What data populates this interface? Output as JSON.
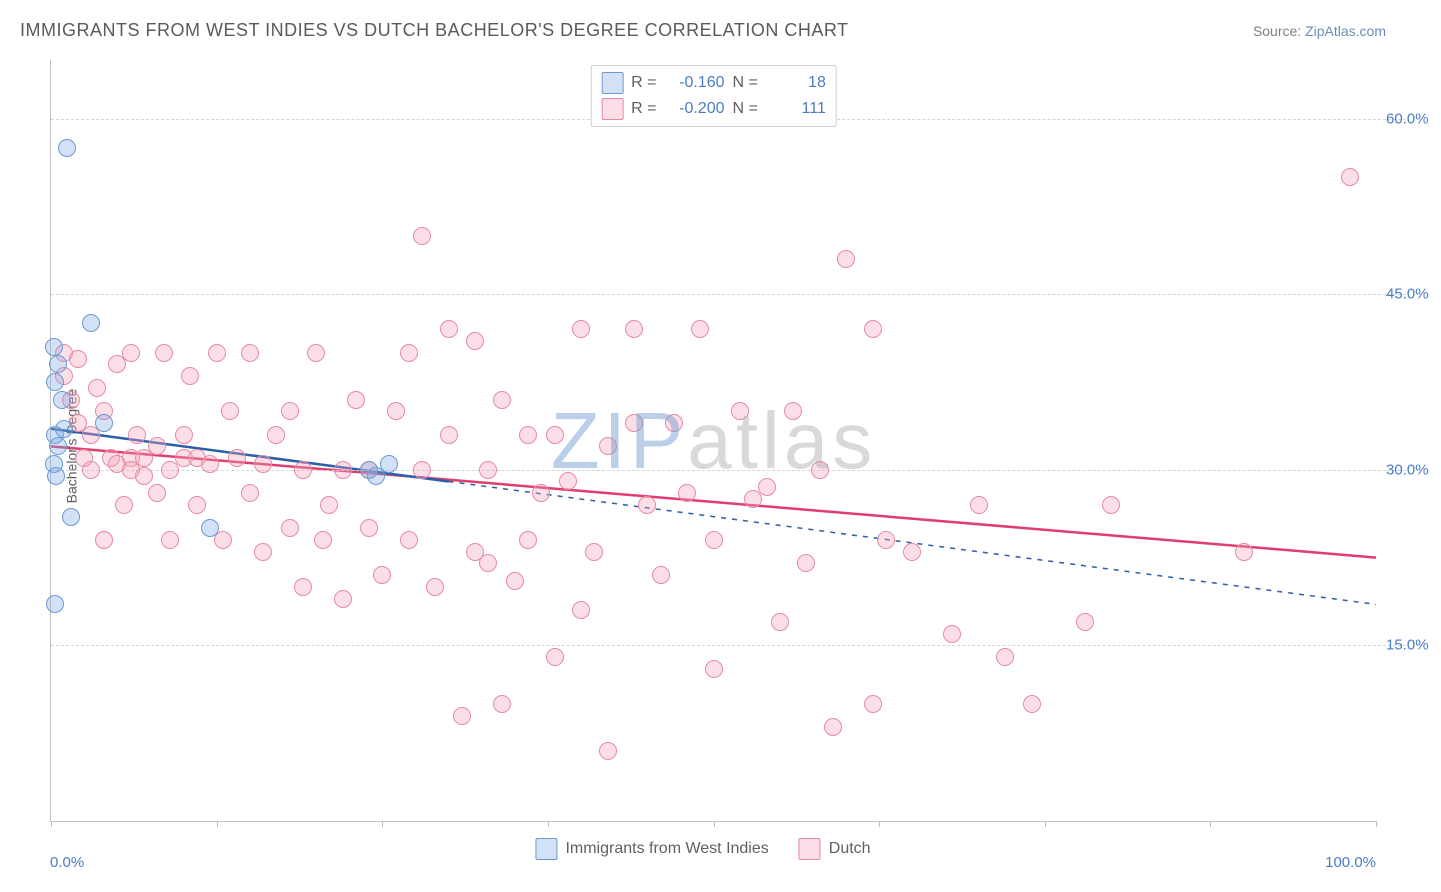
{
  "header": {
    "title": "IMMIGRANTS FROM WEST INDIES VS DUTCH BACHELOR'S DEGREE CORRELATION CHART",
    "source_prefix": "Source: ",
    "source_link": "ZipAtlas.com"
  },
  "watermark": {
    "part1": "ZIP",
    "part2": "atlas"
  },
  "chart": {
    "type": "scatter",
    "background_color": "#ffffff",
    "grid_color": "#d5d5d5",
    "axis_color": "#c0c0c0",
    "ylabel": "Bachelor's Degree",
    "ylabel_fontsize": 14,
    "ylabel_color": "#606060",
    "xlim": [
      0,
      100
    ],
    "ylim": [
      0,
      65
    ],
    "xtick_positions": [
      0,
      12.5,
      25,
      37.5,
      50,
      62.5,
      75,
      87.5,
      100
    ],
    "xtick_labels_shown": {
      "0": "0.0%",
      "100": "100.0%"
    },
    "ytick_positions": [
      15,
      30,
      45,
      60
    ],
    "ytick_labels": [
      "15.0%",
      "30.0%",
      "45.0%",
      "60.0%"
    ],
    "tick_label_color": "#4a7bc8",
    "tick_label_fontsize": 15,
    "marker_radius": 9,
    "marker_border_width": 1,
    "series": [
      {
        "name": "Immigrants from West Indies",
        "fill_color": "rgba(125,170,225,0.35)",
        "border_color": "#6b9bd1",
        "trend_color": "#2b5fa8",
        "trend_width": 2.5,
        "trend_dash_ext": "5,6",
        "R": "-0.160",
        "N": "18",
        "trend": {
          "x1": 0,
          "y1": 33.5,
          "x2": 30,
          "y2": 29.0,
          "ext_x2": 100,
          "ext_y2": 18.5
        },
        "points": [
          {
            "x": 1.2,
            "y": 57.5
          },
          {
            "x": 3.0,
            "y": 42.5
          },
          {
            "x": 0.2,
            "y": 40.5
          },
          {
            "x": 0.5,
            "y": 39.0
          },
          {
            "x": 0.3,
            "y": 37.5
          },
          {
            "x": 0.8,
            "y": 36.0
          },
          {
            "x": 0.3,
            "y": 33.0
          },
          {
            "x": 0.5,
            "y": 32.0
          },
          {
            "x": 0.2,
            "y": 30.5
          },
          {
            "x": 0.4,
            "y": 29.5
          },
          {
            "x": 1.0,
            "y": 33.5
          },
          {
            "x": 1.5,
            "y": 26.0
          },
          {
            "x": 0.3,
            "y": 18.5
          },
          {
            "x": 12.0,
            "y": 25.0
          },
          {
            "x": 24.0,
            "y": 30.0
          },
          {
            "x": 24.5,
            "y": 29.5
          },
          {
            "x": 25.5,
            "y": 30.5
          },
          {
            "x": 4.0,
            "y": 34.0
          }
        ]
      },
      {
        "name": "Dutch",
        "fill_color": "rgba(245,160,185,0.35)",
        "border_color": "#e68aa5",
        "trend_color": "#e03e6f",
        "trend_width": 2.5,
        "R": "-0.200",
        "N": "111",
        "trend": {
          "x1": 0,
          "y1": 32.0,
          "x2": 100,
          "y2": 22.5
        },
        "points": [
          {
            "x": 1,
            "y": 40
          },
          {
            "x": 1,
            "y": 38
          },
          {
            "x": 1.5,
            "y": 36
          },
          {
            "x": 2,
            "y": 39.5
          },
          {
            "x": 2,
            "y": 34
          },
          {
            "x": 2.5,
            "y": 31
          },
          {
            "x": 3,
            "y": 30
          },
          {
            "x": 3,
            "y": 33
          },
          {
            "x": 3.5,
            "y": 37
          },
          {
            "x": 4,
            "y": 35
          },
          {
            "x": 4,
            "y": 24
          },
          {
            "x": 4.5,
            "y": 31
          },
          {
            "x": 5,
            "y": 30.5
          },
          {
            "x": 5,
            "y": 39
          },
          {
            "x": 5.5,
            "y": 27
          },
          {
            "x": 6,
            "y": 31
          },
          {
            "x": 6,
            "y": 30
          },
          {
            "x": 6.5,
            "y": 33
          },
          {
            "x": 7,
            "y": 31
          },
          {
            "x": 7,
            "y": 29.5
          },
          {
            "x": 8,
            "y": 32
          },
          {
            "x": 8,
            "y": 28
          },
          {
            "x": 8.5,
            "y": 40
          },
          {
            "x": 9,
            "y": 30
          },
          {
            "x": 9,
            "y": 24
          },
          {
            "x": 10,
            "y": 33
          },
          {
            "x": 10,
            "y": 31
          },
          {
            "x": 10.5,
            "y": 38
          },
          {
            "x": 11,
            "y": 27
          },
          {
            "x": 11,
            "y": 31
          },
          {
            "x": 12,
            "y": 30.5
          },
          {
            "x": 12.5,
            "y": 40
          },
          {
            "x": 13,
            "y": 24
          },
          {
            "x": 13.5,
            "y": 35
          },
          {
            "x": 14,
            "y": 31
          },
          {
            "x": 15,
            "y": 40
          },
          {
            "x": 15,
            "y": 28
          },
          {
            "x": 16,
            "y": 30.5
          },
          {
            "x": 16,
            "y": 23
          },
          {
            "x": 17,
            "y": 33
          },
          {
            "x": 18,
            "y": 35
          },
          {
            "x": 18,
            "y": 25
          },
          {
            "x": 19,
            "y": 30
          },
          {
            "x": 19,
            "y": 20
          },
          {
            "x": 20,
            "y": 40
          },
          {
            "x": 20.5,
            "y": 24
          },
          {
            "x": 21,
            "y": 27
          },
          {
            "x": 22,
            "y": 19
          },
          {
            "x": 22,
            "y": 30
          },
          {
            "x": 23,
            "y": 36
          },
          {
            "x": 24,
            "y": 30
          },
          {
            "x": 24,
            "y": 25
          },
          {
            "x": 25,
            "y": 21
          },
          {
            "x": 26,
            "y": 35
          },
          {
            "x": 27,
            "y": 40
          },
          {
            "x": 27,
            "y": 24
          },
          {
            "x": 28,
            "y": 30
          },
          {
            "x": 28,
            "y": 50
          },
          {
            "x": 29,
            "y": 20
          },
          {
            "x": 30,
            "y": 33
          },
          {
            "x": 30,
            "y": 42
          },
          {
            "x": 31,
            "y": 9
          },
          {
            "x": 32,
            "y": 23
          },
          {
            "x": 32,
            "y": 41
          },
          {
            "x": 33,
            "y": 30
          },
          {
            "x": 33,
            "y": 22
          },
          {
            "x": 34,
            "y": 36
          },
          {
            "x": 34,
            "y": 10
          },
          {
            "x": 35,
            "y": 20.5
          },
          {
            "x": 36,
            "y": 33
          },
          {
            "x": 36,
            "y": 24
          },
          {
            "x": 37,
            "y": 28
          },
          {
            "x": 38,
            "y": 14
          },
          {
            "x": 38,
            "y": 33
          },
          {
            "x": 39,
            "y": 29
          },
          {
            "x": 40,
            "y": 42
          },
          {
            "x": 40,
            "y": 18
          },
          {
            "x": 41,
            "y": 23
          },
          {
            "x": 42,
            "y": 6
          },
          {
            "x": 42,
            "y": 32
          },
          {
            "x": 44,
            "y": 42
          },
          {
            "x": 45,
            "y": 27
          },
          {
            "x": 46,
            "y": 21
          },
          {
            "x": 47,
            "y": 34
          },
          {
            "x": 48,
            "y": 28
          },
          {
            "x": 49,
            "y": 42
          },
          {
            "x": 50,
            "y": 24
          },
          {
            "x": 50,
            "y": 13
          },
          {
            "x": 52,
            "y": 35
          },
          {
            "x": 53,
            "y": 27.5
          },
          {
            "x": 54,
            "y": 28.5
          },
          {
            "x": 55,
            "y": 17
          },
          {
            "x": 56,
            "y": 35
          },
          {
            "x": 57,
            "y": 22
          },
          {
            "x": 58,
            "y": 30
          },
          {
            "x": 59,
            "y": 8
          },
          {
            "x": 60,
            "y": 48
          },
          {
            "x": 62,
            "y": 42
          },
          {
            "x": 62,
            "y": 10
          },
          {
            "x": 63,
            "y": 24
          },
          {
            "x": 65,
            "y": 23
          },
          {
            "x": 68,
            "y": 16
          },
          {
            "x": 70,
            "y": 27
          },
          {
            "x": 72,
            "y": 14
          },
          {
            "x": 74,
            "y": 10
          },
          {
            "x": 78,
            "y": 17
          },
          {
            "x": 80,
            "y": 27
          },
          {
            "x": 90,
            "y": 23
          },
          {
            "x": 98,
            "y": 55
          },
          {
            "x": 6,
            "y": 40
          },
          {
            "x": 44,
            "y": 34
          }
        ]
      }
    ]
  },
  "legend_top": {
    "r_label": "R =",
    "n_label": "N ="
  },
  "legend_bottom": {
    "series1_label": "Immigrants from West Indies",
    "series2_label": "Dutch"
  }
}
